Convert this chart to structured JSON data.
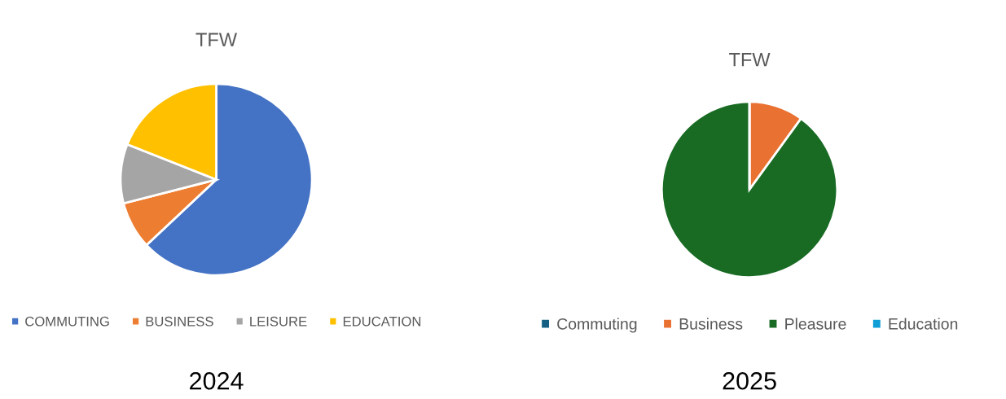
{
  "chart_data": [
    {
      "type": "pie",
      "title": "TFW",
      "categories": [
        "COMMUTING",
        "BUSINESS",
        "LEISURE",
        "EDUCATION"
      ],
      "values": [
        63,
        8,
        10,
        19
      ],
      "colors": [
        "#4472c4",
        "#ed7d31",
        "#a5a5a5",
        "#ffc000"
      ],
      "legend": "bottom",
      "annotations": [
        "2024"
      ]
    },
    {
      "type": "pie",
      "title": "TFW",
      "categories": [
        "Commuting",
        "Business",
        "Pleasure",
        "Education"
      ],
      "values": [
        0,
        10,
        90,
        0
      ],
      "colors": [
        "#156082",
        "#e97132",
        "#196b24",
        "#0f9ed5"
      ],
      "legend": "bottom",
      "annotations": [
        "2025"
      ]
    }
  ]
}
